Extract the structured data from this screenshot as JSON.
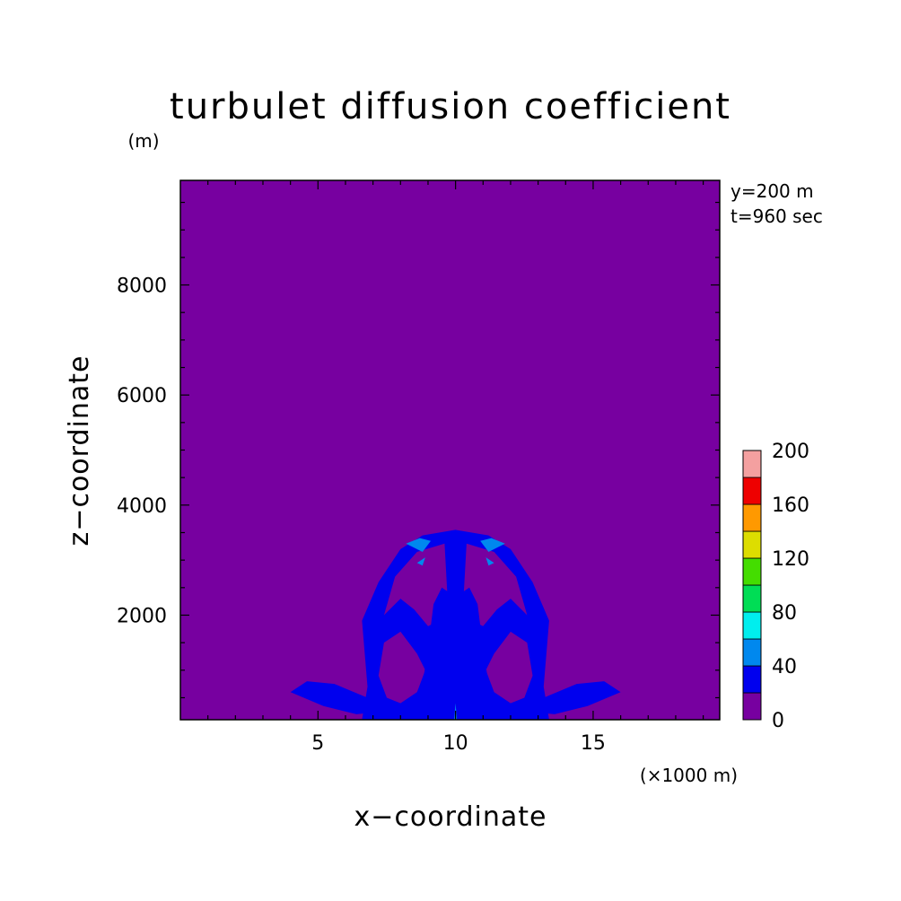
{
  "chart_data": {
    "type": "heatmap",
    "title": "turbulet diffusion coefficient",
    "xlabel": "x−coordinate",
    "ylabel": "z−coordinate",
    "x_unit": "(×1000 m)",
    "y_unit": "(m)",
    "info_lines": [
      "y=200 m",
      "t=960 sec"
    ],
    "xlim": [
      0,
      19.6
    ],
    "ylim": [
      100,
      9900
    ],
    "x_ticks": [
      5,
      10,
      15
    ],
    "x_tick_labels": [
      "5",
      "10",
      "15"
    ],
    "y_ticks": [
      2000,
      4000,
      6000,
      8000
    ],
    "y_tick_labels": [
      "2000",
      "4000",
      "6000",
      "8000"
    ],
    "colorbar": {
      "levels": [
        0,
        20,
        40,
        60,
        80,
        100,
        120,
        140,
        160,
        180,
        200
      ],
      "colors": [
        "#7700a0",
        "#0000ee",
        "#0088ee",
        "#00eeee",
        "#00dd55",
        "#44dd00",
        "#dddd00",
        "#ff9900",
        "#ee0000",
        "#f4a0a0"
      ],
      "tick_labels": [
        "0",
        "40",
        "80",
        "120",
        "160",
        "200"
      ]
    },
    "background_color": "#7700a0",
    "contours": [
      {
        "level": "20-40",
        "color": "#0000ee",
        "points": [
          [
            6.6,
            100
          ],
          [
            6.8,
            700
          ],
          [
            6.6,
            1900
          ],
          [
            7.2,
            2600
          ],
          [
            8.0,
            3200
          ],
          [
            8.8,
            3450
          ],
          [
            10.0,
            3550
          ],
          [
            11.2,
            3450
          ],
          [
            12.0,
            3200
          ],
          [
            12.8,
            2600
          ],
          [
            13.4,
            1900
          ],
          [
            13.2,
            700
          ],
          [
            13.4,
            100
          ]
        ]
      },
      {
        "level": "0-20",
        "color": "#7700a0",
        "points": [
          [
            7.2,
            900
          ],
          [
            7.4,
            1500
          ],
          [
            8.0,
            1700
          ],
          [
            8.6,
            1300
          ],
          [
            8.9,
            1000
          ],
          [
            8.6,
            600
          ],
          [
            8.0,
            400
          ],
          [
            7.5,
            500
          ]
        ]
      },
      {
        "level": "0-20",
        "color": "#7700a0",
        "points": [
          [
            12.8,
            900
          ],
          [
            12.6,
            1500
          ],
          [
            12.0,
            1700
          ],
          [
            11.4,
            1300
          ],
          [
            11.1,
            1000
          ],
          [
            11.4,
            600
          ],
          [
            12.0,
            400
          ],
          [
            12.5,
            500
          ]
        ]
      },
      {
        "level": "0-20",
        "color": "#7700a0",
        "points": [
          [
            7.4,
            2000
          ],
          [
            7.8,
            2700
          ],
          [
            8.6,
            3150
          ],
          [
            9.6,
            3300
          ],
          [
            9.7,
            2400
          ],
          [
            9.4,
            1900
          ],
          [
            9.0,
            1800
          ],
          [
            8.5,
            2100
          ],
          [
            8.0,
            2300
          ]
        ]
      },
      {
        "level": "0-20",
        "color": "#7700a0",
        "points": [
          [
            12.6,
            2000
          ],
          [
            12.2,
            2700
          ],
          [
            11.4,
            3150
          ],
          [
            10.4,
            3300
          ],
          [
            10.3,
            2400
          ],
          [
            10.6,
            1900
          ],
          [
            11.0,
            1800
          ],
          [
            11.5,
            2100
          ],
          [
            12.0,
            2300
          ]
        ]
      },
      {
        "level": "20-40",
        "color": "#0000ee",
        "points": [
          [
            8.6,
            100
          ],
          [
            9.0,
            1400
          ],
          [
            9.2,
            2200
          ],
          [
            9.5,
            2500
          ],
          [
            9.8,
            2400
          ],
          [
            9.9,
            3200
          ],
          [
            10.1,
            3200
          ],
          [
            10.2,
            2400
          ],
          [
            10.5,
            2500
          ],
          [
            10.8,
            2200
          ],
          [
            11.0,
            1400
          ],
          [
            11.4,
            100
          ]
        ]
      },
      {
        "level": "20-40",
        "color": "#0000ee",
        "points": [
          [
            4.0,
            600
          ],
          [
            4.6,
            800
          ],
          [
            5.6,
            750
          ],
          [
            6.8,
            500
          ],
          [
            7.4,
            250
          ],
          [
            6.4,
            200
          ],
          [
            5.2,
            350
          ]
        ]
      },
      {
        "level": "20-40",
        "color": "#0000ee",
        "points": [
          [
            16.0,
            600
          ],
          [
            15.4,
            800
          ],
          [
            14.4,
            750
          ],
          [
            13.2,
            500
          ],
          [
            12.6,
            250
          ],
          [
            13.6,
            200
          ],
          [
            14.8,
            350
          ]
        ]
      },
      {
        "level": "40-60",
        "color": "#0088ee",
        "points": [
          [
            8.2,
            3300
          ],
          [
            8.7,
            3400
          ],
          [
            9.1,
            3350
          ],
          [
            8.8,
            3150
          ]
        ]
      },
      {
        "level": "40-60",
        "color": "#0088ee",
        "points": [
          [
            11.8,
            3300
          ],
          [
            11.3,
            3400
          ],
          [
            10.9,
            3350
          ],
          [
            11.2,
            3150
          ]
        ]
      },
      {
        "level": "40-60",
        "color": "#0088ee",
        "points": [
          [
            8.6,
            2950
          ],
          [
            8.9,
            3050
          ],
          [
            8.8,
            2900
          ]
        ]
      },
      {
        "level": "40-60",
        "color": "#0088ee",
        "points": [
          [
            11.4,
            2950
          ],
          [
            11.1,
            3050
          ],
          [
            11.2,
            2900
          ]
        ]
      },
      {
        "level": "40-60",
        "color": "#0088ee",
        "points": [
          [
            9.95,
            100
          ],
          [
            10.0,
            400
          ],
          [
            10.05,
            100
          ]
        ]
      }
    ]
  }
}
